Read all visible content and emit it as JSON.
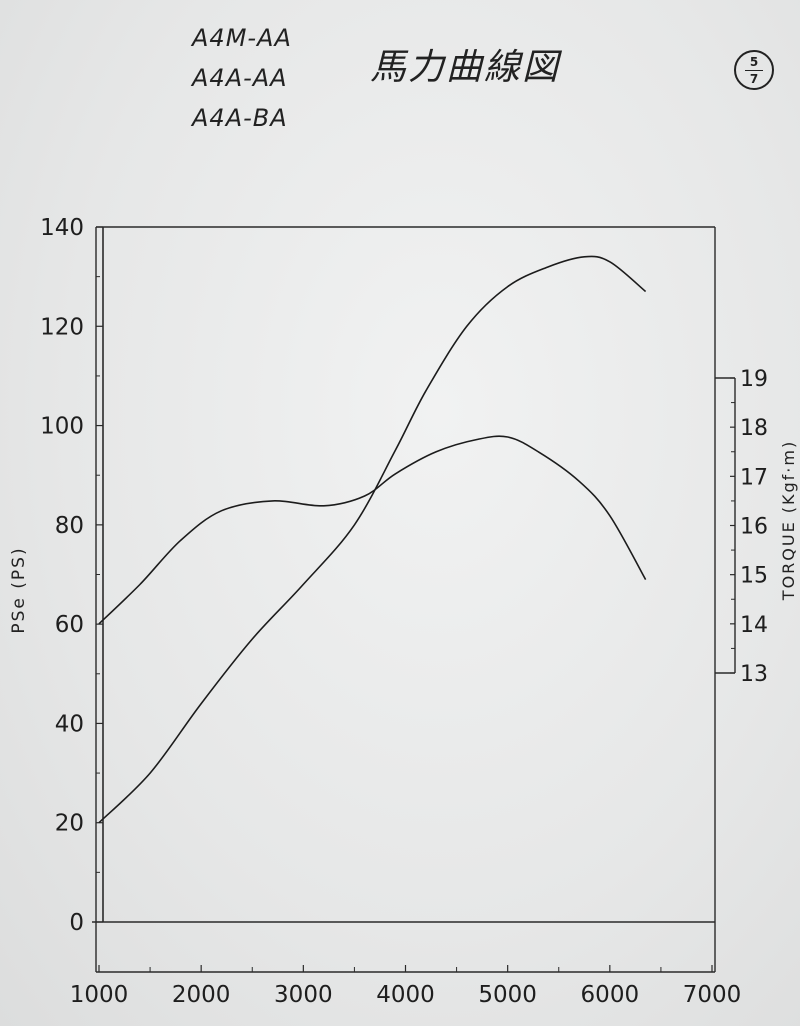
{
  "header": {
    "model_codes": [
      "A4M-AA",
      "A4A-AA",
      "A4A-BA"
    ],
    "title": "馬力曲線図",
    "page_marker": {
      "numerator": "5",
      "denominator": "7"
    }
  },
  "chart_data": {
    "type": "line",
    "xlabel": "",
    "ylabel_left": "PSe (PS)",
    "ylabel_right": "TORQUE (Kgf·m)",
    "x_ticks": [
      "1000",
      "2000",
      "3000",
      "4000",
      "5000",
      "6000",
      "7000"
    ],
    "y_left_ticks": [
      "0",
      "20",
      "40",
      "60",
      "80",
      "100",
      "120",
      "140"
    ],
    "y_right_ticks": [
      "13",
      "14",
      "15",
      "16",
      "17",
      "18",
      "19"
    ],
    "xlim": [
      1000,
      7000
    ],
    "ylim_left": [
      0,
      140
    ],
    "ylim_right": [
      13,
      19
    ],
    "grid": false,
    "series": [
      {
        "axis": "left",
        "x": [
          1000,
          1500,
          2000,
          2500,
          3000,
          3500,
          3900,
          4200,
          4600,
          5000,
          5400,
          5750,
          6000,
          6350
        ],
        "values": [
          20,
          30,
          44,
          57,
          68,
          80,
          95,
          107,
          120,
          128,
          132,
          134,
          133,
          127
        ]
      },
      {
        "axis": "right",
        "x": [
          1000,
          1400,
          1800,
          2200,
          2700,
          3200,
          3600,
          3900,
          4300,
          4700,
          5000,
          5300,
          5700,
          6000,
          6350
        ],
        "values": [
          14.0,
          14.8,
          15.7,
          16.3,
          16.5,
          16.4,
          16.6,
          17.05,
          17.5,
          17.75,
          17.8,
          17.5,
          16.9,
          16.2,
          14.9
        ]
      }
    ]
  }
}
